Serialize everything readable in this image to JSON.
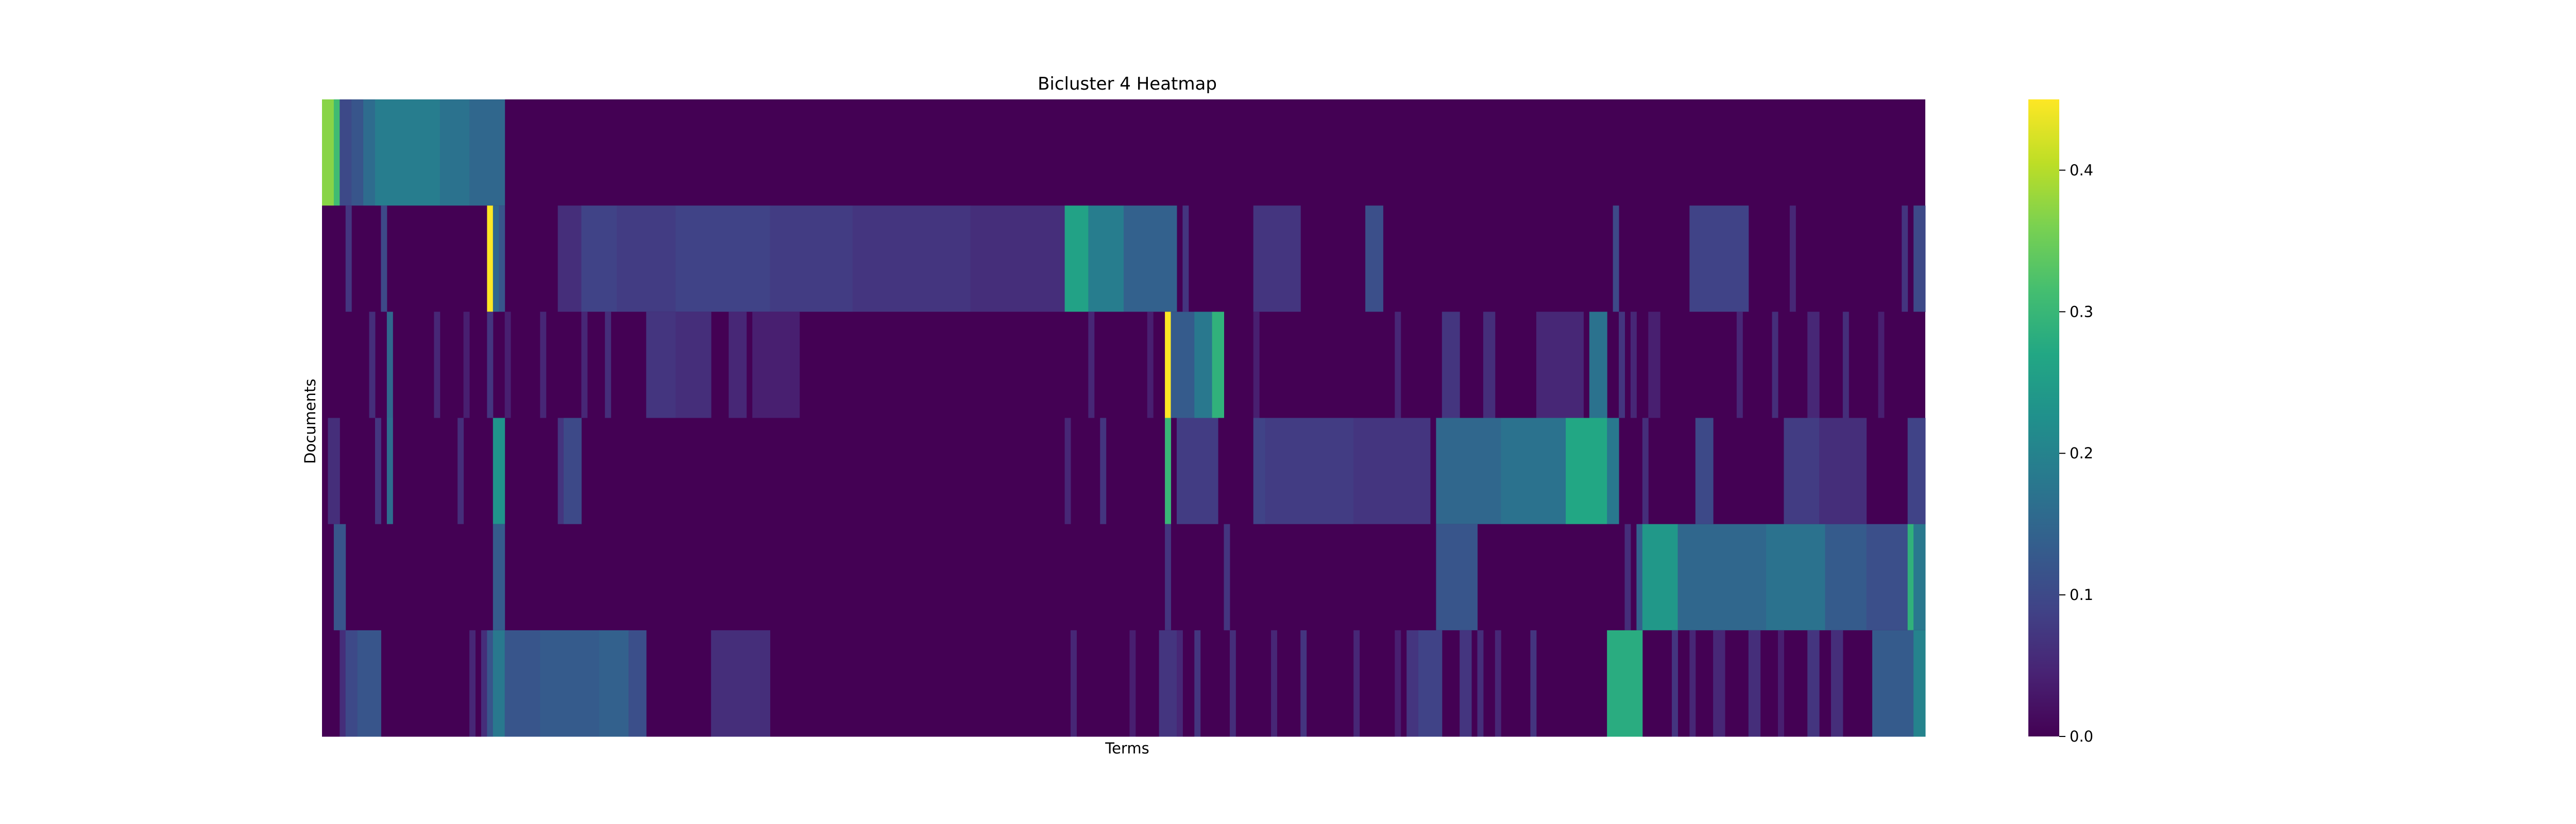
{
  "chart_data": {
    "type": "heatmap",
    "title": "Bicluster 4 Heatmap",
    "xlabel": "Terms",
    "ylabel": "Documents",
    "x_tick_labels": [],
    "y_tick_labels": [],
    "n_rows": 6,
    "n_cols": 272,
    "colormap": "viridis",
    "vmin": 0.0,
    "vmax": 0.45,
    "colorbar": {
      "ticks": [
        0.0,
        0.1,
        0.2,
        0.3,
        0.4
      ],
      "tick_labels": [
        "0.0",
        "0.1",
        "0.2",
        "0.3",
        "0.4"
      ],
      "placement": "right"
    },
    "rows": [
      {
        "default": 0.0,
        "runs": [
          [
            0,
            2,
            0.37
          ],
          [
            2,
            3,
            0.31
          ],
          [
            3,
            5,
            0.1
          ],
          [
            5,
            7,
            0.12
          ],
          [
            7,
            9,
            0.16
          ],
          [
            9,
            20,
            0.19
          ],
          [
            20,
            25,
            0.17
          ],
          [
            25,
            31,
            0.15
          ]
        ]
      },
      {
        "default": 0.0,
        "runs": [
          [
            4,
            5,
            0.07
          ],
          [
            10,
            11,
            0.1
          ],
          [
            28,
            29,
            0.45
          ],
          [
            29,
            30,
            0.15
          ],
          [
            30,
            31,
            0.12
          ],
          [
            40,
            44,
            0.06
          ],
          [
            44,
            50,
            0.09
          ],
          [
            50,
            60,
            0.08
          ],
          [
            60,
            76,
            0.09
          ],
          [
            76,
            90,
            0.08
          ],
          [
            90,
            110,
            0.07
          ],
          [
            110,
            126,
            0.06
          ],
          [
            126,
            130,
            0.26
          ],
          [
            130,
            136,
            0.19
          ],
          [
            136,
            145,
            0.14
          ],
          [
            146,
            147,
            0.07
          ],
          [
            158,
            166,
            0.07
          ],
          [
            177,
            180,
            0.11
          ],
          [
            219,
            220,
            0.1
          ],
          [
            232,
            242,
            0.09
          ],
          [
            249,
            250,
            0.05
          ],
          [
            268,
            269,
            0.07
          ],
          [
            270,
            272,
            0.1
          ]
        ]
      },
      {
        "default": 0.0,
        "runs": [
          [
            8,
            9,
            0.06
          ],
          [
            11,
            12,
            0.15
          ],
          [
            19,
            20,
            0.05
          ],
          [
            24,
            25,
            0.04
          ],
          [
            28,
            29,
            0.07
          ],
          [
            31,
            32,
            0.04
          ],
          [
            37,
            38,
            0.05
          ],
          [
            44,
            45,
            0.05
          ],
          [
            48,
            49,
            0.06
          ],
          [
            55,
            60,
            0.07
          ],
          [
            60,
            66,
            0.06
          ],
          [
            69,
            72,
            0.05
          ],
          [
            73,
            81,
            0.04
          ],
          [
            130,
            131,
            0.05
          ],
          [
            140,
            141,
            0.04
          ],
          [
            143,
            144,
            0.45
          ],
          [
            144,
            148,
            0.13
          ],
          [
            148,
            151,
            0.18
          ],
          [
            151,
            153,
            0.29
          ],
          [
            158,
            159,
            0.04
          ],
          [
            182,
            183,
            0.05
          ],
          [
            190,
            193,
            0.07
          ],
          [
            197,
            199,
            0.06
          ],
          [
            206,
            214,
            0.05
          ],
          [
            215,
            218,
            0.17
          ],
          [
            220,
            221,
            0.07
          ],
          [
            222,
            223,
            0.05
          ],
          [
            225,
            227,
            0.04
          ],
          [
            240,
            241,
            0.05
          ],
          [
            246,
            247,
            0.06
          ],
          [
            252,
            254,
            0.05
          ],
          [
            258,
            259,
            0.06
          ],
          [
            264,
            265,
            0.04
          ]
        ]
      },
      {
        "default": 0.0,
        "runs": [
          [
            1,
            3,
            0.06
          ],
          [
            9,
            10,
            0.07
          ],
          [
            11,
            12,
            0.16
          ],
          [
            23,
            24,
            0.06
          ],
          [
            29,
            31,
            0.23
          ],
          [
            40,
            41,
            0.07
          ],
          [
            41,
            44,
            0.1
          ],
          [
            126,
            127,
            0.05
          ],
          [
            132,
            133,
            0.07
          ],
          [
            143,
            144,
            0.3
          ],
          [
            145,
            152,
            0.08
          ],
          [
            158,
            160,
            0.09
          ],
          [
            160,
            175,
            0.08
          ],
          [
            175,
            188,
            0.07
          ],
          [
            189,
            200,
            0.15
          ],
          [
            200,
            211,
            0.17
          ],
          [
            211,
            218,
            0.27
          ],
          [
            218,
            220,
            0.18
          ],
          [
            224,
            225,
            0.06
          ],
          [
            233,
            236,
            0.1
          ],
          [
            248,
            254,
            0.08
          ],
          [
            254,
            262,
            0.06
          ],
          [
            269,
            272,
            0.09
          ]
        ]
      },
      {
        "default": 0.0,
        "runs": [
          [
            2,
            4,
            0.12
          ],
          [
            29,
            31,
            0.13
          ],
          [
            143,
            144,
            0.07
          ],
          [
            153,
            154,
            0.07
          ],
          [
            189,
            196,
            0.12
          ],
          [
            221,
            222,
            0.06
          ],
          [
            223,
            224,
            0.14
          ],
          [
            224,
            230,
            0.24
          ],
          [
            230,
            245,
            0.15
          ],
          [
            245,
            255,
            0.17
          ],
          [
            255,
            262,
            0.13
          ],
          [
            262,
            269,
            0.11
          ],
          [
            269,
            270,
            0.29
          ],
          [
            270,
            272,
            0.18
          ]
        ]
      },
      {
        "default": 0.0,
        "runs": [
          [
            3,
            4,
            0.06
          ],
          [
            4,
            6,
            0.1
          ],
          [
            6,
            10,
            0.12
          ],
          [
            25,
            26,
            0.05
          ],
          [
            27,
            28,
            0.06
          ],
          [
            28,
            29,
            0.12
          ],
          [
            29,
            31,
            0.18
          ],
          [
            31,
            37,
            0.12
          ],
          [
            37,
            47,
            0.13
          ],
          [
            47,
            52,
            0.14
          ],
          [
            52,
            55,
            0.11
          ],
          [
            66,
            76,
            0.06
          ],
          [
            127,
            128,
            0.05
          ],
          [
            137,
            138,
            0.04
          ],
          [
            142,
            145,
            0.07
          ],
          [
            145,
            146,
            0.05
          ],
          [
            148,
            149,
            0.07
          ],
          [
            154,
            155,
            0.06
          ],
          [
            161,
            162,
            0.05
          ],
          [
            166,
            167,
            0.07
          ],
          [
            175,
            176,
            0.05
          ],
          [
            182,
            183,
            0.04
          ],
          [
            184,
            186,
            0.07
          ],
          [
            186,
            190,
            0.09
          ],
          [
            193,
            195,
            0.07
          ],
          [
            196,
            197,
            0.06
          ],
          [
            199,
            200,
            0.05
          ],
          [
            205,
            206,
            0.07
          ],
          [
            218,
            224,
            0.28
          ],
          [
            229,
            230,
            0.07
          ],
          [
            232,
            233,
            0.05
          ],
          [
            236,
            238,
            0.05
          ],
          [
            242,
            244,
            0.06
          ],
          [
            247,
            248,
            0.04
          ],
          [
            252,
            254,
            0.07
          ],
          [
            256,
            258,
            0.06
          ],
          [
            263,
            270,
            0.13
          ],
          [
            270,
            272,
            0.2
          ]
        ]
      }
    ]
  }
}
